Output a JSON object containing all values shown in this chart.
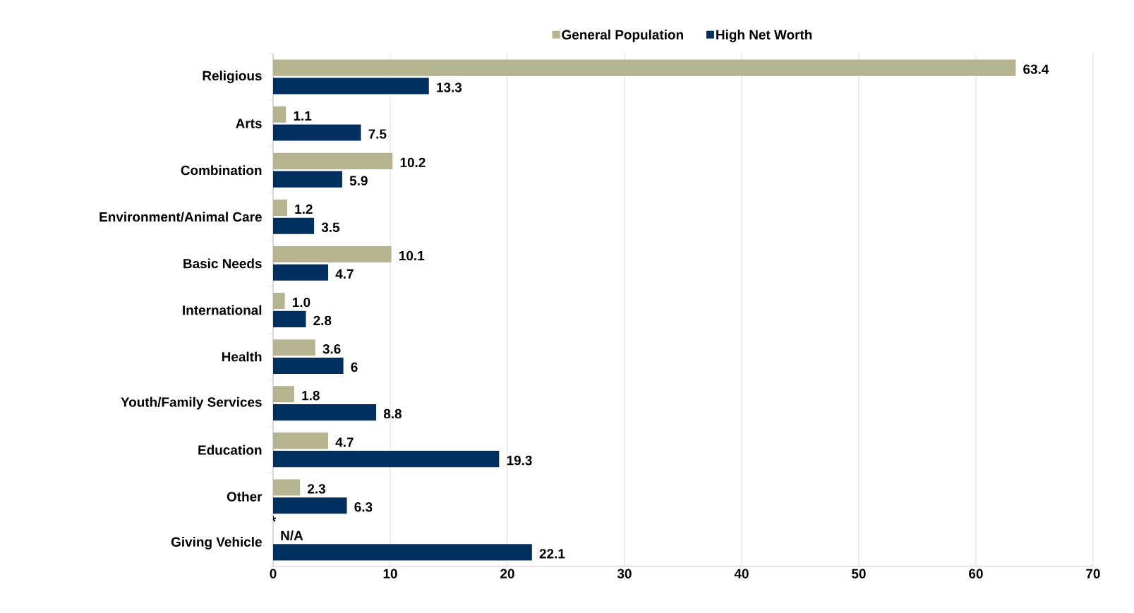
{
  "chart_data": {
    "type": "bar",
    "orientation": "horizontal",
    "categories": [
      "Religious",
      "Arts",
      "Combination",
      "Environment/Animal Care",
      "Basic Needs",
      "International",
      "Health",
      "Youth/Family Services",
      "Education",
      "Other",
      "Giving Vehicle"
    ],
    "series": [
      {
        "name": "General Population",
        "color": "#b5b48e",
        "values": [
          63.4,
          1.1,
          10.2,
          1.2,
          10.1,
          1.0,
          3.6,
          1.8,
          4.7,
          2.3,
          null
        ],
        "value_labels": [
          "63.4",
          "1.1",
          "10.2",
          "1.2",
          "10.1",
          "1.0",
          "3.6",
          "1.8",
          "4.7",
          "2.3",
          "N/A"
        ]
      },
      {
        "name": "High Net Worth",
        "color": "#00305f",
        "values": [
          13.3,
          7.5,
          5.9,
          3.5,
          4.7,
          2.8,
          6,
          8.8,
          19.3,
          6.3,
          22.1
        ],
        "value_labels": [
          "13.3",
          "7.5",
          "5.9",
          "3.5",
          "4.7",
          "2.8",
          "6",
          "8.8",
          "19.3",
          "6.3",
          "22.1"
        ]
      }
    ],
    "xlim": [
      0,
      70
    ],
    "xticks": [
      0,
      10,
      20,
      30,
      40,
      50,
      60,
      70
    ],
    "grid": "x",
    "legend": "top",
    "annotations": [
      "*"
    ]
  }
}
